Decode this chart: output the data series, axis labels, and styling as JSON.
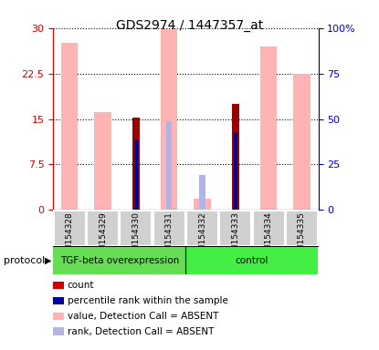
{
  "title": "GDS2974 / 1447357_at",
  "samples": [
    "GSM154328",
    "GSM154329",
    "GSM154330",
    "GSM154331",
    "GSM154332",
    "GSM154333",
    "GSM154334",
    "GSM154335"
  ],
  "group_labels": [
    "TGF-beta overexpression",
    "control"
  ],
  "value_absent": [
    27.5,
    16.2,
    null,
    29.8,
    1.8,
    null,
    27.0,
    22.5
  ],
  "rank_absent_pct": [
    null,
    null,
    null,
    49.0,
    19.3,
    null,
    null,
    null
  ],
  "count_red": [
    null,
    null,
    15.3,
    null,
    null,
    17.5,
    null,
    null
  ],
  "rank_blue_pct": [
    null,
    null,
    38.3,
    null,
    null,
    42.7,
    null,
    null
  ],
  "left_yticks": [
    0,
    7.5,
    15,
    22.5,
    30
  ],
  "right_yticks": [
    0,
    25,
    50,
    75,
    100
  ],
  "left_ylabel_color": "#cc0000",
  "right_ylabel_color": "#0000cc",
  "color_value_absent": "#ffb3b3",
  "color_rank_absent": "#b3b3e6",
  "color_count": "#990000",
  "color_rank": "#000099",
  "protocol_label": "protocol",
  "legend_items": [
    {
      "label": "count",
      "color": "#cc0000"
    },
    {
      "label": "percentile rank within the sample",
      "color": "#000099"
    },
    {
      "label": "value, Detection Call = ABSENT",
      "color": "#ffb3b3"
    },
    {
      "label": "rank, Detection Call = ABSENT",
      "color": "#b3b3e6"
    }
  ]
}
